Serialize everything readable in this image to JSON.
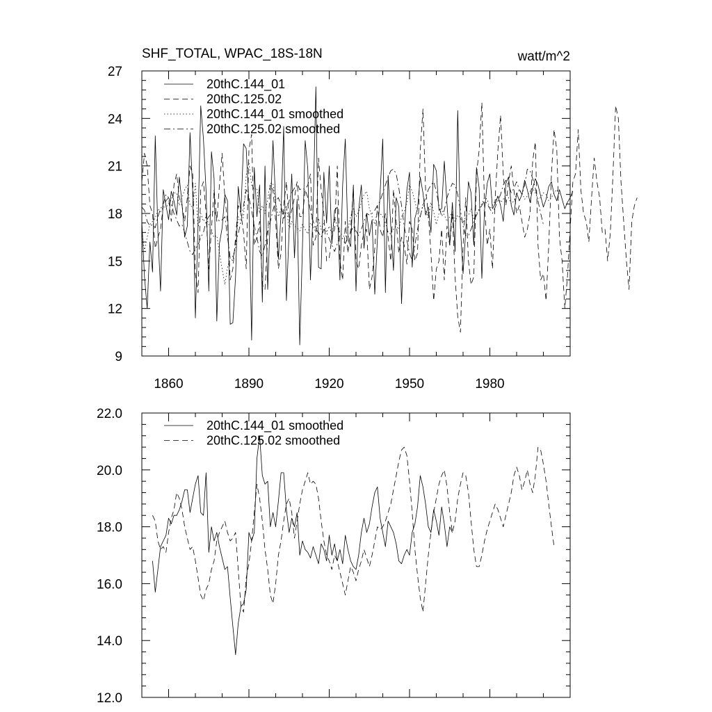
{
  "title": "SHF_TOTAL, WPAC_18S-18N",
  "units": "watt/m^2",
  "chart_data": [
    {
      "type": "line",
      "title": "SHF_TOTAL, WPAC_18S-18N",
      "ylabel": "watt/m^2",
      "xlim": [
        1850,
        2010
      ],
      "ylim": [
        9,
        27
      ],
      "x_ticks": [
        1860,
        1890,
        1920,
        1950,
        1980
      ],
      "x_tick_labels": [
        "1860",
        "1890",
        "1920",
        "1950",
        "1980"
      ],
      "y_ticks": [
        9,
        12,
        15,
        18,
        21,
        24,
        27
      ],
      "y_tick_labels": [
        "9",
        "12",
        "15",
        "18",
        "21",
        "24",
        "27"
      ],
      "legend": [
        "20thC.144_01",
        "20thC.125.02",
        "20thC.144_01 smoothed",
        "20thC.125.02 smoothed"
      ],
      "series": [
        {
          "name": "20thC.144_01",
          "style": "solid",
          "start_year": 1850,
          "values": [
            17.5,
            14.0,
            12.0,
            16.2,
            14.3,
            22.9,
            16.8,
            13.1,
            19.5,
            18.5,
            17.6,
            19.4,
            18.8,
            17.9,
            20.3,
            18.6,
            16.5,
            17.2,
            23.1,
            19.4,
            11.4,
            17.4,
            24.8,
            22.7,
            19.4,
            13.1,
            21.9,
            20.2,
            11.2,
            16.1,
            17.1,
            19.2,
            18.8,
            11.0,
            11.1,
            14.0,
            19.7,
            18.1,
            22.4,
            22.1,
            18.6,
            10.0,
            20.9,
            17.8,
            19.8,
            12.4,
            21.0,
            13.2,
            17.8,
            22.6,
            18.7,
            15.1,
            18.0,
            23.5,
            12.5,
            16.9,
            20.5,
            15.2,
            18.9,
            9.7,
            15.9,
            22.6,
            20.8,
            13.8,
            18.4,
            26.0,
            14.6,
            14.5,
            20.6,
            17.4,
            21.0,
            16.1,
            18.2,
            18.4,
            13.8,
            19.8,
            22.7,
            16.4,
            15.9,
            19.8,
            13.1,
            18.2,
            19.8,
            15.8,
            18.0,
            16.6,
            17.6,
            12.9,
            16.4,
            19.3,
            22.7,
            13.0,
            20.4,
            17.2,
            14.4,
            19.0,
            18.4,
            12.3,
            16.8,
            19.5,
            20.6,
            14.6,
            17.7,
            18.3,
            20.3,
            19.3,
            17.9,
            18.4,
            16.8,
            21.1,
            20.7,
            18.2,
            18.3,
            21.3,
            18.6,
            16.0,
            18.7,
            15.6,
            24.5,
            17.1,
            14.2,
            16.9,
            20.0,
            19.3,
            16.0,
            20.9,
            19.6,
            13.9,
            18.2,
            19.9,
            20.5,
            18.3,
            18.6,
            19.1,
            18.5,
            17.5,
            19.9,
            20.3,
            18.5,
            17.9,
            19.3,
            18.8,
            19.2,
            20.1,
            19.5,
            18.7,
            19.6,
            20.2,
            19.8,
            19.1,
            18.4,
            18.9,
            19.7,
            20.0,
            19.2,
            18.8,
            19.5,
            18.9,
            18.3,
            18.7,
            19.0,
            19.4
          ]
        },
        {
          "name": "20thC.125.02",
          "style": "dashed",
          "start_year": 1850,
          "values": [
            20.0,
            21.8,
            21.0,
            18.5,
            18.0,
            15.8,
            16.5,
            17.0,
            18.5,
            18.8,
            19.0,
            17.5,
            19.8,
            20.5,
            19.0,
            18.5,
            17.5,
            19.0,
            21.0,
            20.5,
            14.2,
            13.0,
            19.5,
            20.0,
            18.0,
            14.5,
            17.0,
            19.5,
            17.5,
            19.8,
            21.8,
            19.0,
            17.5,
            13.8,
            14.5,
            16.5,
            18.5,
            18.0,
            16.8,
            14.5,
            22.0,
            23.0,
            16.0,
            16.5,
            17.5,
            13.5,
            13.2,
            16.5,
            19.8,
            19.5,
            17.5,
            14.5,
            15.5,
            18.5,
            20.0,
            17.5,
            18.2,
            19.0,
            20.0,
            17.8,
            17.8,
            19.5,
            19.8,
            20.5,
            16.0,
            16.5,
            21.5,
            19.5,
            18.0,
            15.0,
            15.2,
            16.5,
            17.0,
            21.0,
            15.0,
            13.8,
            17.5,
            15.5,
            17.0,
            19.5,
            15.0,
            14.5,
            16.0,
            16.8,
            17.0,
            13.2,
            14.0,
            15.8,
            18.5,
            17.0,
            16.5,
            18.0,
            16.5,
            15.0,
            19.5,
            17.5,
            15.5,
            16.5,
            16.0,
            14.8,
            17.5,
            17.0,
            15.0,
            15.5,
            22.0,
            24.6,
            19.5,
            18.0,
            15.5,
            12.5,
            14.5,
            15.0,
            17.0,
            13.8,
            17.2,
            16.0,
            18.0,
            14.0,
            11.5,
            10.5,
            16.0,
            19.0,
            15.0,
            13.5,
            14.0,
            20.5,
            22.0,
            25.0,
            18.5,
            16.0,
            17.0,
            14.5,
            19.0,
            22.0,
            24.2,
            20.5,
            18.5,
            20.0,
            21.0,
            19.5,
            18.0,
            18.5,
            17.5,
            16.5,
            17.0,
            18.0,
            21.3,
            22.5,
            16.0,
            13.8,
            14.2,
            12.5,
            16.0,
            20.5,
            23.3,
            22.0,
            16.5,
            15.0,
            12.0,
            14.0,
            17.0,
            20.0,
            20.5,
            23.3,
            19.5,
            18.0,
            17.5,
            16.2,
            19.0,
            21.5,
            20.0,
            19.0,
            16.8,
            17.0,
            15.0,
            16.8,
            20.5,
            24.8,
            24.0,
            20.0,
            17.5,
            15.0,
            13.2,
            17.5,
            18.5,
            19.0
          ]
        },
        {
          "name": "20thC.144_01 smoothed",
          "style": "dotted",
          "start_year": 1850,
          "values": [
            16.8,
            15.7,
            16.5,
            17.3,
            17.5,
            17.7,
            18.3,
            18.1,
            18.4,
            18.4,
            18.6,
            18.9,
            19.3,
            19.3,
            18.5,
            19.0,
            19.5,
            19.8,
            18.5,
            18.4,
            19.9,
            17.1,
            18.0,
            17.5,
            17.8,
            17.3,
            16.9,
            16.5,
            16.6,
            15.5,
            14.5,
            13.5,
            14.6,
            15.2,
            15.3,
            15.8,
            17.8,
            17.5,
            17.8,
            20.4,
            21.2,
            19.8,
            19.5,
            19.6,
            18.0,
            18.5,
            18.0,
            18.9,
            19.9,
            19.9,
            18.6,
            17.8,
            18.3,
            18.0,
            18.5,
            17.0,
            17.5,
            17.2,
            17.1,
            16.9,
            17.3,
            17.0,
            16.7,
            17.4,
            17.2,
            16.8,
            17.7,
            17.0,
            17.4,
            16.8,
            17.2,
            16.7,
            17.7,
            17.2,
            16.8,
            16.6,
            16.5,
            17.0,
            17.8,
            18.3,
            17.8,
            18.1,
            18.7,
            19.2,
            19.4,
            18.3,
            17.8,
            17.3,
            18.2,
            18.0,
            17.8,
            17.4,
            16.8,
            16.7,
            17.0,
            17.2,
            17.0,
            17.8,
            18.1,
            18.7,
            19.8,
            19.4,
            18.8,
            18.0,
            17.8,
            18.6,
            18.2,
            17.7,
            18.7,
            18.1,
            17.3,
            18.0,
            18.2,
            17.9,
            17.5,
            17.8,
            18.1,
            17.5,
            17.9,
            17.7,
            17.4,
            17.8,
            17.9,
            18.3,
            17.6,
            18.0,
            18.3,
            18.6,
            19.0,
            18.9,
            18.3,
            18.5,
            18.8,
            19.1,
            18.7,
            18.9,
            19.2,
            19.0,
            18.6,
            18.8,
            19.2,
            19.5,
            19.3,
            18.9,
            19.1,
            19.4,
            19.6,
            19.3,
            18.9,
            19.0,
            19.3,
            19.2,
            18.8,
            19.0,
            19.3,
            19.5,
            19.2
          ]
        },
        {
          "name": "20thC.125.02 smoothed",
          "style": "dashdot",
          "start_year": 1850,
          "values": [
            18.4,
            18.2,
            17.5,
            17.2,
            17.3,
            17.1,
            17.8,
            18.3,
            18.6,
            19.2,
            19.0,
            18.6,
            18.0,
            17.6,
            17.2,
            17.3,
            16.8,
            16.2,
            15.6,
            15.4,
            15.8,
            16.0,
            16.5,
            16.8,
            17.5,
            17.8,
            18.0,
            18.2,
            17.8,
            17.5,
            17.6,
            17.8,
            16.5,
            15.2,
            15.0,
            16.2,
            16.7,
            17.5,
            18.5,
            19.5,
            19.0,
            18.2,
            17.2,
            16.5,
            15.6,
            15.3,
            16.0,
            17.0,
            17.5,
            18.2,
            18.8,
            19.0,
            18.5,
            17.6,
            18.2,
            18.8,
            19.3,
            19.6,
            19.9,
            19.5,
            19.6,
            19.5,
            19.0,
            18.2,
            17.5,
            17.0,
            16.8,
            16.5,
            17.0,
            16.8,
            16.4,
            16.0,
            15.6,
            16.1,
            16.6,
            16.4,
            16.1,
            16.5,
            16.8,
            17.2,
            16.9,
            16.6,
            17.0,
            17.5,
            18.0,
            17.9,
            18.0,
            18.2,
            18.5,
            18.8,
            19.3,
            19.8,
            20.3,
            20.7,
            20.8,
            20.5,
            19.6,
            18.5,
            17.2,
            16.3,
            15.5,
            15.0,
            16.0,
            17.0,
            17.8,
            18.5,
            19.0,
            19.5,
            19.8,
            20.0,
            19.4,
            18.5,
            17.8,
            18.2,
            19.0,
            19.5,
            19.9,
            19.8,
            19.2,
            18.2,
            17.2,
            16.6,
            16.6,
            17.0,
            17.5,
            17.9,
            18.2,
            18.5,
            18.8,
            18.6,
            18.3,
            18.0,
            18.4,
            18.8,
            19.2,
            19.8,
            20.1,
            19.8,
            19.3,
            19.6,
            20.0,
            19.5,
            19.2,
            19.8,
            20.8,
            20.7,
            20.2,
            19.6,
            18.8,
            18.0,
            17.3
          ]
        }
      ]
    },
    {
      "type": "line",
      "xlim": [
        1850,
        2010
      ],
      "ylim": [
        12.0,
        22.0
      ],
      "x_ticks": [
        1860,
        1890,
        1920,
        1950,
        1980
      ],
      "y_ticks": [
        12.0,
        14.0,
        16.0,
        18.0,
        20.0,
        22.0
      ],
      "y_tick_labels": [
        "12.0",
        "14.0",
        "16.0",
        "18.0",
        "20.0",
        "22.0"
      ],
      "legend": [
        "20thC.144_01 smoothed",
        "20thC.125.02 smoothed"
      ],
      "series": [
        {
          "name": "20thC.144_01 smoothed",
          "style": "solid",
          "start_year": 1854,
          "values": [
            16.8,
            15.7,
            16.5,
            17.3,
            17.5,
            17.7,
            18.3,
            18.1,
            18.4,
            18.4,
            18.6,
            18.9,
            19.3,
            19.3,
            18.5,
            19.0,
            19.5,
            19.8,
            18.5,
            18.4,
            19.9,
            17.1,
            18.0,
            17.5,
            17.8,
            17.3,
            16.9,
            16.5,
            16.6,
            15.5,
            14.5,
            13.5,
            14.6,
            15.2,
            15.3,
            15.8,
            17.8,
            17.5,
            17.8,
            20.4,
            21.2,
            19.8,
            19.5,
            19.6,
            18.0,
            18.5,
            18.0,
            18.9,
            19.9,
            19.9,
            18.6,
            17.8,
            18.3,
            18.0,
            18.5,
            17.0,
            17.5,
            17.2,
            17.1,
            16.9,
            17.3,
            17.0,
            16.7,
            17.4,
            17.2,
            16.8,
            17.7,
            17.0,
            17.4,
            16.8,
            17.2,
            16.7,
            17.7,
            17.2,
            16.8,
            16.6,
            16.5,
            17.0,
            17.8,
            18.3,
            17.8,
            18.1,
            18.7,
            19.2,
            19.4,
            18.3,
            17.8,
            17.3,
            18.2,
            18.0,
            17.8,
            17.4,
            16.8,
            16.7,
            17.0,
            17.2,
            17.0,
            17.8,
            18.1,
            18.7,
            19.8,
            19.4,
            18.8,
            18.0,
            17.8,
            18.6,
            18.2,
            17.7,
            18.7,
            18.1,
            17.3,
            18.0,
            17.8
          ]
        },
        {
          "name": "20thC.125.02 smoothed",
          "style": "dashed",
          "start_year": 1854,
          "values": [
            18.4,
            18.2,
            17.5,
            17.2,
            17.3,
            17.1,
            17.8,
            18.3,
            18.6,
            19.2,
            19.0,
            18.6,
            18.0,
            17.6,
            17.2,
            17.3,
            16.8,
            16.2,
            15.6,
            15.4,
            15.8,
            16.0,
            16.5,
            16.8,
            17.5,
            17.8,
            18.0,
            18.2,
            17.8,
            17.5,
            17.6,
            17.8,
            16.5,
            15.2,
            15.0,
            16.2,
            16.7,
            17.5,
            18.5,
            19.5,
            19.0,
            18.2,
            17.2,
            16.5,
            15.6,
            15.3,
            16.0,
            17.0,
            17.5,
            18.2,
            18.8,
            19.0,
            18.5,
            17.6,
            18.2,
            18.8,
            19.3,
            19.6,
            19.9,
            19.5,
            19.6,
            19.5,
            19.0,
            18.2,
            17.5,
            17.0,
            16.8,
            16.5,
            17.0,
            16.8,
            16.4,
            16.0,
            15.6,
            16.1,
            16.6,
            16.4,
            16.1,
            16.5,
            16.8,
            17.2,
            16.9,
            16.6,
            17.0,
            17.5,
            18.0,
            17.9,
            18.0,
            18.2,
            18.5,
            18.8,
            19.3,
            19.8,
            20.3,
            20.7,
            20.8,
            20.5,
            19.6,
            18.5,
            17.2,
            16.3,
            15.5,
            15.0,
            16.0,
            17.0,
            17.8,
            18.5,
            19.0,
            19.5,
            19.8,
            20.0,
            19.4,
            18.5,
            17.8,
            18.2,
            19.0,
            19.5,
            19.9,
            19.8,
            19.2,
            18.2,
            17.2,
            16.6,
            16.6,
            17.0,
            17.5,
            17.9,
            18.2,
            18.5,
            18.8,
            18.6,
            18.3,
            18.0,
            18.4,
            18.8,
            19.2,
            19.8,
            20.1,
            19.8,
            19.3,
            19.6,
            20.0,
            19.5,
            19.2,
            19.8,
            20.8,
            20.7,
            20.2,
            19.6,
            18.8,
            18.0,
            17.3
          ]
        }
      ]
    }
  ]
}
